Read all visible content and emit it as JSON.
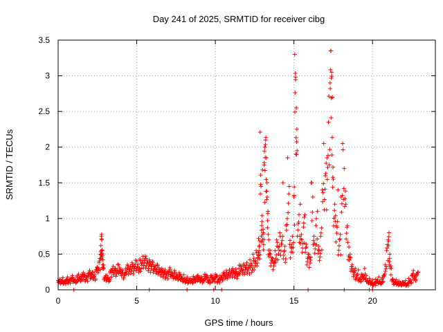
{
  "chart_data": {
    "type": "scatter",
    "title": "Day 241 of 2025, SRMTID for receiver cibg",
    "xlabel": "GPS time / hours",
    "ylabel": "SRMTID / TECUs",
    "xlim": [
      0,
      24
    ],
    "ylim": [
      0,
      3.5
    ],
    "xticks": [
      0,
      5,
      10,
      15,
      20
    ],
    "yticks": [
      0,
      0.5,
      1,
      1.5,
      2,
      2.5,
      3,
      3.5
    ],
    "xtick_labels": [
      "0",
      "5",
      "10",
      "15",
      "20"
    ],
    "ytick_labels": [
      "0",
      "0.5",
      "1",
      "1.5",
      "2",
      "2.5",
      "3",
      "3.5"
    ],
    "grid": true,
    "marker": "+",
    "color": "#ff0000",
    "series": [
      {
        "name": "SRMTID",
        "points": [
          [
            0.0,
            0.13
          ],
          [
            0.1,
            0.15
          ],
          [
            0.2,
            0.12
          ],
          [
            0.3,
            0.17
          ],
          [
            0.4,
            0.11
          ],
          [
            0.5,
            0.14
          ],
          [
            0.6,
            0.18
          ],
          [
            0.7,
            0.13
          ],
          [
            0.8,
            0.16
          ],
          [
            0.9,
            0.2
          ],
          [
            1.0,
            0.15
          ],
          [
            1.1,
            0.12
          ],
          [
            1.2,
            0.18
          ],
          [
            1.3,
            0.22
          ],
          [
            1.4,
            0.16
          ],
          [
            1.5,
            0.19
          ],
          [
            1.6,
            0.24
          ],
          [
            1.7,
            0.2
          ],
          [
            1.8,
            0.17
          ],
          [
            1.9,
            0.23
          ],
          [
            2.0,
            0.27
          ],
          [
            2.1,
            0.21
          ],
          [
            2.2,
            0.25
          ],
          [
            2.3,
            0.19
          ],
          [
            2.4,
            0.28
          ],
          [
            2.5,
            0.32
          ],
          [
            2.6,
            0.38
          ],
          [
            2.7,
            0.5
          ],
          [
            2.72,
            0.62
          ],
          [
            2.75,
            0.75
          ],
          [
            2.78,
            0.7
          ],
          [
            2.8,
            0.55
          ],
          [
            2.85,
            0.42
          ],
          [
            2.9,
            0.3
          ],
          [
            3.0,
            0.18
          ],
          [
            3.1,
            0.2
          ],
          [
            3.2,
            0.15
          ],
          [
            3.3,
            0.24
          ],
          [
            3.4,
            0.28
          ],
          [
            3.5,
            0.33
          ],
          [
            3.6,
            0.3
          ],
          [
            3.7,
            0.27
          ],
          [
            3.8,
            0.35
          ],
          [
            3.9,
            0.31
          ],
          [
            4.0,
            0.25
          ],
          [
            4.1,
            0.28
          ],
          [
            4.2,
            0.22
          ],
          [
            4.3,
            0.3
          ],
          [
            4.4,
            0.35
          ],
          [
            4.5,
            0.29
          ],
          [
            4.6,
            0.33
          ],
          [
            4.7,
            0.38
          ],
          [
            4.8,
            0.32
          ],
          [
            4.9,
            0.36
          ],
          [
            5.0,
            0.4
          ],
          [
            5.1,
            0.31
          ],
          [
            5.2,
            0.43
          ],
          [
            5.3,
            0.37
          ],
          [
            5.4,
            0.47
          ],
          [
            5.5,
            0.41
          ],
          [
            5.6,
            0.44
          ],
          [
            5.7,
            0.38
          ],
          [
            5.8,
            0.42
          ],
          [
            5.9,
            0.35
          ],
          [
            6.0,
            0.4
          ],
          [
            6.1,
            0.33
          ],
          [
            6.2,
            0.29
          ],
          [
            6.3,
            0.36
          ],
          [
            6.4,
            0.31
          ],
          [
            6.5,
            0.26
          ],
          [
            6.6,
            0.3
          ],
          [
            6.7,
            0.24
          ],
          [
            6.8,
            0.28
          ],
          [
            6.9,
            0.22
          ],
          [
            7.0,
            0.26
          ],
          [
            7.1,
            0.31
          ],
          [
            7.2,
            0.25
          ],
          [
            7.3,
            0.2
          ],
          [
            7.4,
            0.27
          ],
          [
            7.5,
            0.22
          ],
          [
            7.6,
            0.18
          ],
          [
            7.7,
            0.24
          ],
          [
            7.8,
            0.19
          ],
          [
            7.9,
            0.16
          ],
          [
            8.0,
            0.21
          ],
          [
            8.1,
            0.14
          ],
          [
            8.2,
            0.18
          ],
          [
            8.3,
            0.12
          ],
          [
            8.4,
            0.16
          ],
          [
            8.5,
            0.13
          ],
          [
            8.6,
            0.19
          ],
          [
            8.7,
            0.15
          ],
          [
            8.8,
            0.17
          ],
          [
            8.9,
            0.2
          ],
          [
            9.0,
            0.16
          ],
          [
            9.1,
            0.18
          ],
          [
            9.2,
            0.14
          ],
          [
            9.3,
            0.19
          ],
          [
            9.4,
            0.21
          ],
          [
            9.5,
            0.17
          ],
          [
            9.6,
            0.13
          ],
          [
            9.7,
            0.2
          ],
          [
            9.8,
            0.18
          ],
          [
            9.9,
            0.15
          ],
          [
            10.0,
            0.22
          ],
          [
            10.1,
            0.19
          ],
          [
            10.2,
            0.14
          ],
          [
            10.3,
            0.2
          ],
          [
            10.4,
            0.17
          ],
          [
            10.5,
            0.24
          ],
          [
            10.6,
            0.2
          ],
          [
            10.7,
            0.27
          ],
          [
            10.8,
            0.22
          ],
          [
            10.9,
            0.28
          ],
          [
            11.0,
            0.24
          ],
          [
            11.1,
            0.3
          ],
          [
            11.2,
            0.25
          ],
          [
            11.3,
            0.29
          ],
          [
            11.4,
            0.23
          ],
          [
            11.5,
            0.3
          ],
          [
            11.6,
            0.34
          ],
          [
            11.7,
            0.28
          ],
          [
            11.8,
            0.36
          ],
          [
            11.9,
            0.31
          ],
          [
            12.0,
            0.38
          ],
          [
            12.1,
            0.3
          ],
          [
            12.2,
            0.42
          ],
          [
            12.3,
            0.35
          ],
          [
            12.4,
            0.5
          ],
          [
            12.5,
            0.4
          ],
          [
            12.6,
            0.55
          ],
          [
            12.7,
            0.45
          ],
          [
            12.75,
            0.72
          ],
          [
            12.8,
            0.62
          ],
          [
            12.85,
            2.21
          ],
          [
            12.9,
            1.45
          ],
          [
            12.95,
            0.9
          ],
          [
            13.0,
            1.68
          ],
          [
            13.05,
            0.8
          ],
          [
            13.1,
            1.75
          ],
          [
            13.15,
            2.0
          ],
          [
            13.2,
            2.1
          ],
          [
            13.25,
            1.85
          ],
          [
            13.3,
            1.3
          ],
          [
            13.35,
            1.1
          ],
          [
            13.4,
            0.7
          ],
          [
            13.5,
            0.5
          ],
          [
            13.6,
            0.45
          ],
          [
            13.7,
            0.38
          ],
          [
            13.8,
            0.55
          ],
          [
            13.9,
            0.7
          ],
          [
            14.0,
            0.6
          ],
          [
            14.1,
            0.8
          ],
          [
            14.2,
            0.65
          ],
          [
            14.3,
            1.5
          ],
          [
            14.4,
            0.55
          ],
          [
            14.5,
            0.9
          ],
          [
            14.6,
            1.85
          ],
          [
            14.7,
            1.45
          ],
          [
            14.8,
            0.6
          ],
          [
            14.9,
            0.75
          ],
          [
            15.0,
            1.3
          ],
          [
            15.05,
            3.3
          ],
          [
            15.1,
            2.98
          ],
          [
            15.15,
            2.55
          ],
          [
            15.2,
            1.95
          ],
          [
            15.3,
            0.95
          ],
          [
            15.4,
            1.2
          ],
          [
            15.5,
            0.7
          ],
          [
            15.6,
            0.88
          ],
          [
            15.7,
            1.05
          ],
          [
            15.8,
            0.6
          ],
          [
            15.9,
            0.5
          ],
          [
            16.0,
            0.45
          ],
          [
            16.1,
            1.5
          ],
          [
            16.2,
            1.3
          ],
          [
            16.3,
            0.65
          ],
          [
            16.4,
            0.9
          ],
          [
            16.5,
            1.1
          ],
          [
            16.6,
            0.55
          ],
          [
            16.7,
            0.75
          ],
          [
            16.8,
            1.4
          ],
          [
            16.9,
            2.05
          ],
          [
            17.0,
            1.6
          ],
          [
            17.1,
            1.85
          ],
          [
            17.2,
            2.35
          ],
          [
            17.3,
            2.9
          ],
          [
            17.35,
            3.35
          ],
          [
            17.4,
            3.05
          ],
          [
            17.45,
            2.7
          ],
          [
            17.5,
            1.55
          ],
          [
            17.6,
            1.2
          ],
          [
            17.7,
            0.9
          ],
          [
            17.8,
            1.4
          ],
          [
            17.9,
            0.7
          ],
          [
            18.0,
            1.3
          ],
          [
            18.1,
            2.05
          ],
          [
            18.2,
            1.7
          ],
          [
            18.3,
            1.2
          ],
          [
            18.4,
            0.9
          ],
          [
            18.5,
            0.6
          ],
          [
            18.6,
            0.45
          ],
          [
            18.7,
            0.35
          ],
          [
            18.8,
            0.25
          ],
          [
            18.9,
            0.3
          ],
          [
            19.0,
            0.2
          ],
          [
            19.1,
            0.28
          ],
          [
            19.2,
            0.15
          ],
          [
            19.3,
            0.22
          ],
          [
            19.4,
            0.18
          ],
          [
            19.5,
            0.3
          ],
          [
            19.6,
            0.2
          ],
          [
            19.7,
            0.12
          ],
          [
            19.8,
            0.16
          ],
          [
            19.9,
            0.1
          ],
          [
            20.0,
            0.14
          ],
          [
            20.1,
            0.09
          ],
          [
            20.2,
            0.15
          ],
          [
            20.3,
            0.12
          ],
          [
            20.4,
            0.18
          ],
          [
            20.5,
            0.1
          ],
          [
            20.6,
            0.15
          ],
          [
            20.7,
            0.2
          ],
          [
            20.8,
            0.35
          ],
          [
            20.9,
            0.55
          ],
          [
            21.0,
            0.7
          ],
          [
            21.05,
            0.8
          ],
          [
            21.1,
            0.5
          ],
          [
            21.2,
            0.3
          ],
          [
            21.3,
            0.15
          ],
          [
            21.4,
            0.1
          ],
          [
            21.5,
            0.14
          ],
          [
            21.6,
            0.09
          ],
          [
            21.7,
            0.12
          ],
          [
            21.8,
            0.08
          ],
          [
            21.9,
            0.11
          ],
          [
            22.0,
            0.09
          ],
          [
            22.1,
            0.13
          ],
          [
            22.2,
            0.08
          ],
          [
            22.3,
            0.16
          ],
          [
            22.4,
            0.12
          ],
          [
            22.5,
            0.2
          ],
          [
            22.6,
            0.27
          ],
          [
            22.7,
            0.18
          ],
          [
            22.8,
            0.22
          ],
          [
            22.9,
            0.25
          ]
        ],
        "zero_points": [
          1.0,
          5.8,
          8.2,
          9.9,
          10.4,
          15.9,
          18.2,
          19.8,
          20.0
        ]
      }
    ]
  }
}
